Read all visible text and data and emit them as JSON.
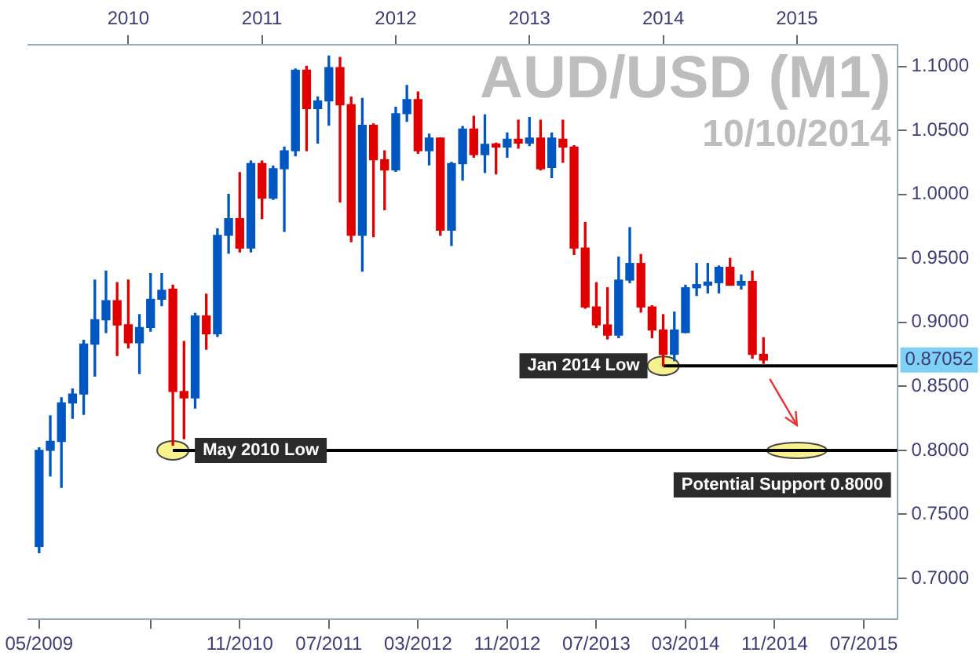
{
  "chart_data": {
    "type": "candlestick",
    "title": "AUD/USD (M1)",
    "subtitle": "10/10/2014",
    "x": [
      "2009-05",
      "2009-06",
      "2009-07",
      "2009-08",
      "2009-09",
      "2009-10",
      "2009-11",
      "2009-12",
      "2010-01",
      "2010-02",
      "2010-03",
      "2010-04",
      "2010-05",
      "2010-06",
      "2010-07",
      "2010-08",
      "2010-09",
      "2010-10",
      "2010-11",
      "2010-12",
      "2011-01",
      "2011-02",
      "2011-03",
      "2011-04",
      "2011-05",
      "2011-06",
      "2011-07",
      "2011-08",
      "2011-09",
      "2011-10",
      "2011-11",
      "2011-12",
      "2012-01",
      "2012-02",
      "2012-03",
      "2012-04",
      "2012-05",
      "2012-06",
      "2012-07",
      "2012-08",
      "2012-09",
      "2012-10",
      "2012-11",
      "2012-12",
      "2013-01",
      "2013-02",
      "2013-03",
      "2013-04",
      "2013-05",
      "2013-06",
      "2013-07",
      "2013-08",
      "2013-09",
      "2013-10",
      "2013-11",
      "2013-12",
      "2014-01",
      "2014-02",
      "2014-03",
      "2014-04",
      "2014-05",
      "2014-06",
      "2014-07",
      "2014-08",
      "2014-09",
      "2014-10"
    ],
    "ohlc": [
      [
        0.725,
        0.802,
        0.72,
        0.8
      ],
      [
        0.8,
        0.827,
        0.78,
        0.807
      ],
      [
        0.807,
        0.841,
        0.771,
        0.837
      ],
      [
        0.837,
        0.848,
        0.825,
        0.844
      ],
      [
        0.844,
        0.886,
        0.828,
        0.883
      ],
      [
        0.883,
        0.933,
        0.858,
        0.902
      ],
      [
        0.902,
        0.94,
        0.892,
        0.917
      ],
      [
        0.917,
        0.931,
        0.874,
        0.898
      ],
      [
        0.898,
        0.933,
        0.88,
        0.884
      ],
      [
        0.884,
        0.906,
        0.86,
        0.896
      ],
      [
        0.896,
        0.938,
        0.893,
        0.918
      ],
      [
        0.918,
        0.938,
        0.913,
        0.925
      ],
      [
        0.926,
        0.929,
        0.804,
        0.846
      ],
      [
        0.846,
        0.885,
        0.809,
        0.841
      ],
      [
        0.841,
        0.907,
        0.833,
        0.905
      ],
      [
        0.905,
        0.922,
        0.879,
        0.891
      ],
      [
        0.891,
        0.973,
        0.889,
        0.968
      ],
      [
        0.968,
        1.0,
        0.954,
        0.981
      ],
      [
        0.981,
        1.017,
        0.955,
        0.958
      ],
      [
        0.958,
        1.026,
        0.955,
        1.024
      ],
      [
        1.024,
        1.026,
        0.981,
        0.997
      ],
      [
        0.997,
        1.022,
        0.996,
        1.02
      ],
      [
        1.02,
        1.037,
        0.971,
        1.034
      ],
      [
        1.034,
        1.098,
        1.03,
        1.097
      ],
      [
        1.097,
        1.1,
        1.034,
        1.067
      ],
      [
        1.067,
        1.076,
        1.04,
        1.073
      ],
      [
        1.073,
        1.108,
        1.054,
        1.099
      ],
      [
        1.099,
        1.107,
        0.994,
        1.07
      ],
      [
        1.07,
        1.076,
        0.963,
        0.968
      ],
      [
        0.968,
        1.075,
        0.94,
        1.054
      ],
      [
        1.054,
        1.055,
        0.967,
        1.027
      ],
      [
        1.027,
        1.034,
        0.988,
        1.019
      ],
      [
        1.019,
        1.068,
        1.018,
        1.063
      ],
      [
        1.063,
        1.085,
        1.057,
        1.074
      ],
      [
        1.074,
        1.08,
        1.032,
        1.034
      ],
      [
        1.034,
        1.047,
        1.023,
        1.044
      ],
      [
        1.044,
        1.044,
        0.968,
        0.972
      ],
      [
        0.972,
        1.025,
        0.96,
        1.024
      ],
      [
        1.024,
        1.053,
        1.011,
        1.051
      ],
      [
        1.051,
        1.061,
        1.029,
        1.031
      ],
      [
        1.031,
        1.062,
        1.017,
        1.039
      ],
      [
        1.039,
        1.04,
        1.016,
        1.037
      ],
      [
        1.037,
        1.048,
        1.029,
        1.043
      ],
      [
        1.043,
        1.058,
        1.036,
        1.04
      ],
      [
        1.04,
        1.06,
        1.038,
        1.044
      ],
      [
        1.044,
        1.058,
        1.019,
        1.02
      ],
      [
        1.021,
        1.048,
        1.013,
        1.044
      ],
      [
        1.043,
        1.058,
        1.025,
        1.037
      ],
      [
        1.037,
        1.038,
        0.953,
        0.958
      ],
      [
        0.958,
        0.978,
        0.911,
        0.912
      ],
      [
        0.912,
        0.931,
        0.896,
        0.898
      ],
      [
        0.898,
        0.927,
        0.887,
        0.89
      ],
      [
        0.89,
        0.951,
        0.888,
        0.933
      ],
      [
        0.933,
        0.974,
        0.931,
        0.946
      ],
      [
        0.946,
        0.953,
        0.908,
        0.912
      ],
      [
        0.912,
        0.913,
        0.888,
        0.894
      ],
      [
        0.894,
        0.906,
        0.866,
        0.875
      ],
      [
        0.875,
        0.908,
        0.87,
        0.894
      ],
      [
        0.892,
        0.929,
        0.892,
        0.927
      ],
      [
        0.927,
        0.946,
        0.921,
        0.929
      ],
      [
        0.929,
        0.946,
        0.923,
        0.931
      ],
      [
        0.931,
        0.944,
        0.923,
        0.943
      ],
      [
        0.943,
        0.95,
        0.929,
        0.929
      ],
      [
        0.929,
        0.937,
        0.926,
        0.932
      ],
      [
        0.932,
        0.94,
        0.872,
        0.875
      ],
      [
        0.875,
        0.888,
        0.868,
        0.87052
      ]
    ],
    "colors": [
      "#0057c1",
      "#0057c1",
      "#0057c1",
      "#0057c1",
      "#0057c1",
      "#0057c1",
      "#0057c1",
      "#e10000",
      "#e10000",
      "#0057c1",
      "#0057c1",
      "#0057c1",
      "#e10000",
      "#e10000",
      "#0057c1",
      "#e10000",
      "#0057c1",
      "#0057c1",
      "#e10000",
      "#0057c1",
      "#e10000",
      "#0057c1",
      "#0057c1",
      "#0057c1",
      "#e10000",
      "#0057c1",
      "#0057c1",
      "#e10000",
      "#e10000",
      "#0057c1",
      "#e10000",
      "#e10000",
      "#0057c1",
      "#0057c1",
      "#e10000",
      "#0057c1",
      "#e10000",
      "#0057c1",
      "#0057c1",
      "#e10000",
      "#0057c1",
      "#e10000",
      "#0057c1",
      "#e10000",
      "#0057c1",
      "#e10000",
      "#0057c1",
      "#e10000",
      "#e10000",
      "#e10000",
      "#e10000",
      "#e10000",
      "#0057c1",
      "#0057c1",
      "#e10000",
      "#e10000",
      "#e10000",
      "#0057c1",
      "#0057c1",
      "#0057c1",
      "#0057c1",
      "#0057c1",
      "#e10000",
      "#0057c1",
      "#e10000",
      "#e10000"
    ],
    "xlim": [
      "2009-04",
      "2015-10"
    ],
    "xticks": [
      {
        "value": "2009-05",
        "label": "05/2009"
      },
      {
        "value": "2010-03",
        "label": null
      },
      {
        "value": "2010-11",
        "label": "11/2010"
      },
      {
        "value": "2011-07",
        "label": "07/2011"
      },
      {
        "value": "2012-03",
        "label": "03/2012"
      },
      {
        "value": "2012-11",
        "label": "11/2012"
      },
      {
        "value": "2013-07",
        "label": "07/2013"
      },
      {
        "value": "2014-03",
        "label": "03/2014"
      },
      {
        "value": "2014-11",
        "label": "11/2014"
      },
      {
        "value": "2015-07",
        "label": "07/2015"
      }
    ],
    "x2lim": [
      "2009-04",
      "2015-10"
    ],
    "x2ticks": [
      {
        "value": "2010-01",
        "label": "2010"
      },
      {
        "value": "2011-01",
        "label": "2011"
      },
      {
        "value": "2012-01",
        "label": "2012"
      },
      {
        "value": "2013-01",
        "label": "2013"
      },
      {
        "value": "2014-01",
        "label": "2014"
      },
      {
        "value": "2015-01",
        "label": "2015"
      }
    ],
    "ylim": [
      0.668,
      1.117
    ],
    "yticks": [
      {
        "value": 0.7,
        "label": "0.7000"
      },
      {
        "value": 0.75,
        "label": "0.7500"
      },
      {
        "value": 0.8,
        "label": "0.8000"
      },
      {
        "value": 0.85,
        "label": "0.8500"
      },
      {
        "value": 0.9,
        "label": "0.9000"
      },
      {
        "value": 0.95,
        "label": "0.9500"
      },
      {
        "value": 1.0,
        "label": "1.0000"
      },
      {
        "value": 1.05,
        "label": "1.0500"
      },
      {
        "value": 1.1,
        "label": "1.1000"
      }
    ],
    "ref_lines": [
      {
        "axis": "y",
        "value": 0.8,
        "label": "May 2010 Low",
        "color": "#000000"
      },
      {
        "axis": "y",
        "value": 0.866,
        "label": "Jan 2014 Low",
        "color": "#000000"
      }
    ],
    "annotations": [
      {
        "text": "Potential Support 0.8000",
        "x": "2015-01",
        "y": 0.8
      },
      "0.87052"
    ]
  }
}
